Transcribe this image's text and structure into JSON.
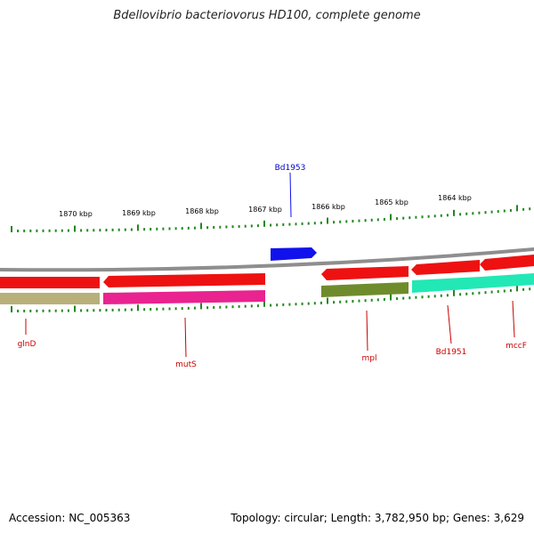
{
  "title": "Bdellovibrio bacteriovorus HD100, complete genome",
  "footer": {
    "accession": "Accession: NC_005363",
    "stats": "Topology: circular; Length: 3,782,950 bp; Genes: 3,629"
  },
  "ruler": {
    "labels": [
      "1870 kbp",
      "1869 kbp",
      "1868 kbp",
      "1867 kbp",
      "1866 kbp",
      "1865 kbp",
      "1864 kbp"
    ],
    "tick_color": "#22881e"
  },
  "colors": {
    "backbone": "#8e8e8e",
    "red_gene": "#ee1111",
    "tan_gene": "#b7b07a",
    "magenta_gene": "#e9238f",
    "olive_gene": "#6f8c2c",
    "aqua_gene": "#22e8b5",
    "blue_gene": "#1111ee",
    "red_label": "#cc0000",
    "blue_label": "#0000cc"
  },
  "gene_labels": {
    "glnD": "glnD",
    "mutS": "mutS",
    "mpl": "mpl",
    "bd1951": "Bd1951",
    "mccF": "mccF",
    "bd1953": "Bd1953"
  }
}
